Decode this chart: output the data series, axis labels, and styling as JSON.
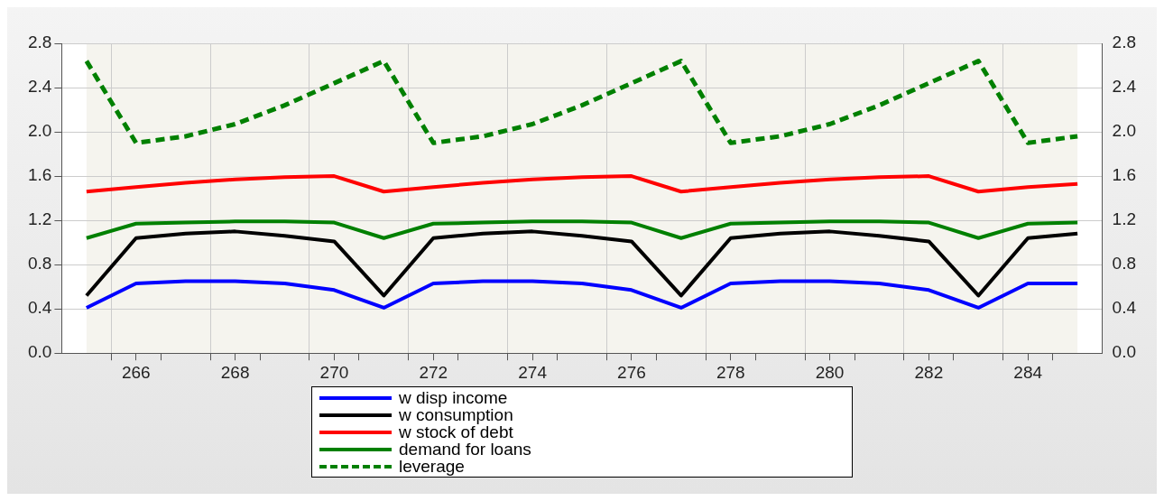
{
  "chart_data": {
    "type": "line",
    "x": [
      265,
      266,
      267,
      268,
      269,
      270,
      271,
      272,
      273,
      274,
      275,
      276,
      277,
      278,
      279,
      280,
      281,
      282,
      283,
      284,
      285
    ],
    "xlim": [
      264.5,
      285.5
    ],
    "xticks": [
      {
        "value": 265.5,
        "label": null
      },
      266,
      {
        "value": 266.5,
        "label": null
      },
      {
        "value": 267.5,
        "label": null
      },
      268,
      {
        "value": 268.5,
        "label": null
      },
      {
        "value": 269.5,
        "label": null
      },
      270,
      {
        "value": 270.5,
        "label": null
      },
      {
        "value": 271.5,
        "label": null
      },
      272,
      {
        "value": 272.5,
        "label": null
      },
      {
        "value": 273.5,
        "label": null
      },
      274,
      {
        "value": 274.5,
        "label": null
      },
      {
        "value": 275.5,
        "label": null
      },
      276,
      {
        "value": 276.5,
        "label": null
      },
      {
        "value": 277.5,
        "label": null
      },
      278,
      {
        "value": 278.5,
        "label": null
      },
      {
        "value": 279.5,
        "label": null
      },
      280,
      {
        "value": 280.5,
        "label": null
      },
      {
        "value": 281.5,
        "label": null
      },
      282,
      {
        "value": 282.5,
        "label": null
      },
      {
        "value": 283.5,
        "label": null
      },
      284,
      {
        "value": 284.5,
        "label": null
      }
    ],
    "ylim": [
      0,
      2.8
    ],
    "yticks": [
      {
        "value": 0,
        "label": "0.0"
      },
      0.4,
      0.8,
      1.2,
      1.6,
      {
        "value": 2,
        "label": "2.0"
      },
      2.4,
      2.8
    ],
    "y2lim": [
      0,
      2.8
    ],
    "y2ticks": [
      {
        "value": 0,
        "label": "0.0"
      },
      0.4,
      0.8,
      1.2,
      1.6,
      {
        "value": 2,
        "label": "2.0"
      },
      2.4,
      2.8
    ],
    "grid": true,
    "legend": "bottom",
    "marker": "none",
    "series": [
      {
        "name": "w disp income",
        "color": "#0000ff",
        "values": [
          0.41,
          0.63,
          0.65,
          0.65,
          0.63,
          0.57,
          0.41,
          0.63,
          0.65,
          0.65,
          0.63,
          0.57,
          0.41,
          0.63,
          0.65,
          0.65,
          0.63,
          0.57,
          0.41,
          0.63,
          0.63
        ]
      },
      {
        "name": "w consumption",
        "color": "#000000",
        "values": [
          0.52,
          1.04,
          1.08,
          1.1,
          1.06,
          1.01,
          0.52,
          1.04,
          1.08,
          1.1,
          1.06,
          1.01,
          0.52,
          1.04,
          1.08,
          1.1,
          1.06,
          1.01,
          0.52,
          1.04,
          1.08
        ]
      },
      {
        "name": "w stock of debt",
        "color": "#ff0000",
        "values": [
          1.46,
          1.5,
          1.54,
          1.57,
          1.59,
          1.6,
          1.46,
          1.5,
          1.54,
          1.57,
          1.59,
          1.6,
          1.46,
          1.5,
          1.54,
          1.57,
          1.59,
          1.6,
          1.46,
          1.5,
          1.53
        ]
      },
      {
        "name": "demand for loans",
        "color": "#008000",
        "values": [
          1.04,
          1.17,
          1.18,
          1.19,
          1.19,
          1.18,
          1.04,
          1.17,
          1.18,
          1.19,
          1.19,
          1.18,
          1.04,
          1.17,
          1.18,
          1.19,
          1.19,
          1.18,
          1.04,
          1.17,
          1.18
        ]
      },
      {
        "name": "leverage",
        "color": "#008000",
        "line_style": "dashed",
        "values": [
          2.64,
          1.9,
          1.96,
          2.07,
          2.24,
          2.44,
          2.64,
          1.9,
          1.96,
          2.07,
          2.24,
          2.44,
          2.64,
          1.9,
          1.96,
          2.07,
          2.24,
          2.44,
          2.64,
          1.9,
          1.96
        ]
      }
    ]
  }
}
